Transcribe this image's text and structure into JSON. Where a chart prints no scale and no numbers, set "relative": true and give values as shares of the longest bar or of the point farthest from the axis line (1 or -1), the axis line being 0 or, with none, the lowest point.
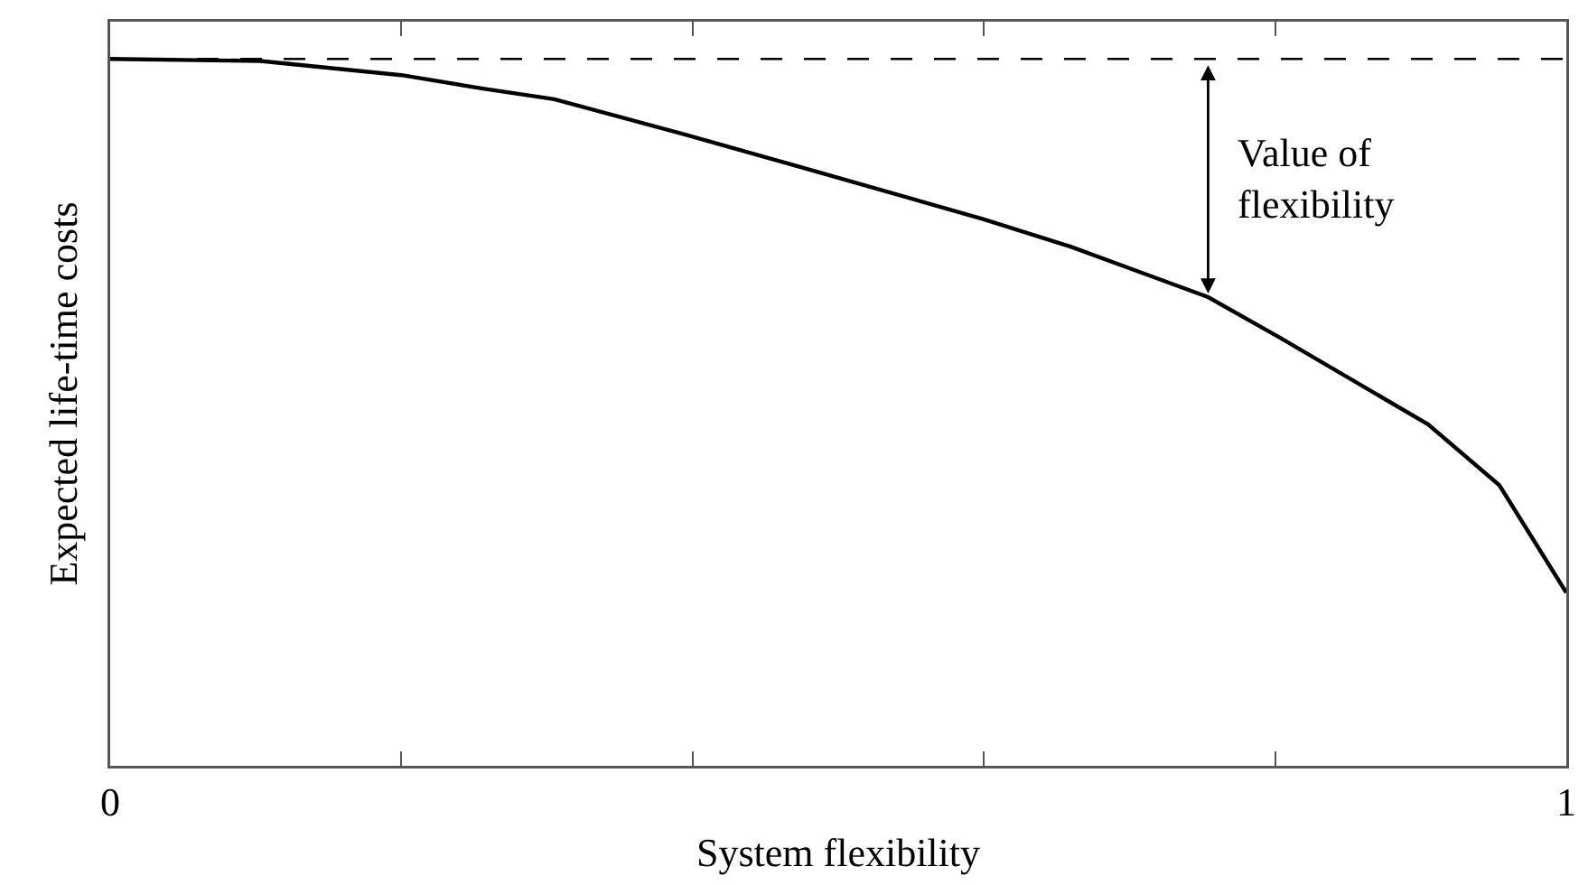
{
  "chart_data": {
    "type": "line",
    "relative": true,
    "xlabel": "System flexibility",
    "ylabel": "Expected life-time costs",
    "xlim": [
      0,
      1
    ],
    "xticks": [
      0,
      {
        "value": 0.2,
        "label": null
      },
      {
        "value": 0.4,
        "label": null
      },
      {
        "value": 0.6,
        "label": null
      },
      {
        "value": 0.8,
        "label": null
      },
      1
    ],
    "tick_labels": "x",
    "line_style": "solid",
    "series": [
      {
        "color": "#000000",
        "x": [
          0,
          0.103,
          0.2,
          0.256,
          0.305,
          0.4,
          0.476,
          0.6,
          0.66,
          0.754,
          0.803,
          0.905,
          0.954,
          1.0
        ],
        "values": [
          1,
          0.997,
          0.977,
          0.958,
          0.943,
          0.89,
          0.846,
          0.773,
          0.734,
          0.663,
          0.606,
          0.483,
          0.397,
          0.245
        ]
      }
    ],
    "ref_lines": [
      {
        "axis": "y",
        "value": 1,
        "color": "#000000",
        "line_style": "dashed"
      }
    ],
    "annotations": [
      {
        "text": "Value of flexibility",
        "x": 0.754,
        "y": 0.663
      }
    ]
  }
}
